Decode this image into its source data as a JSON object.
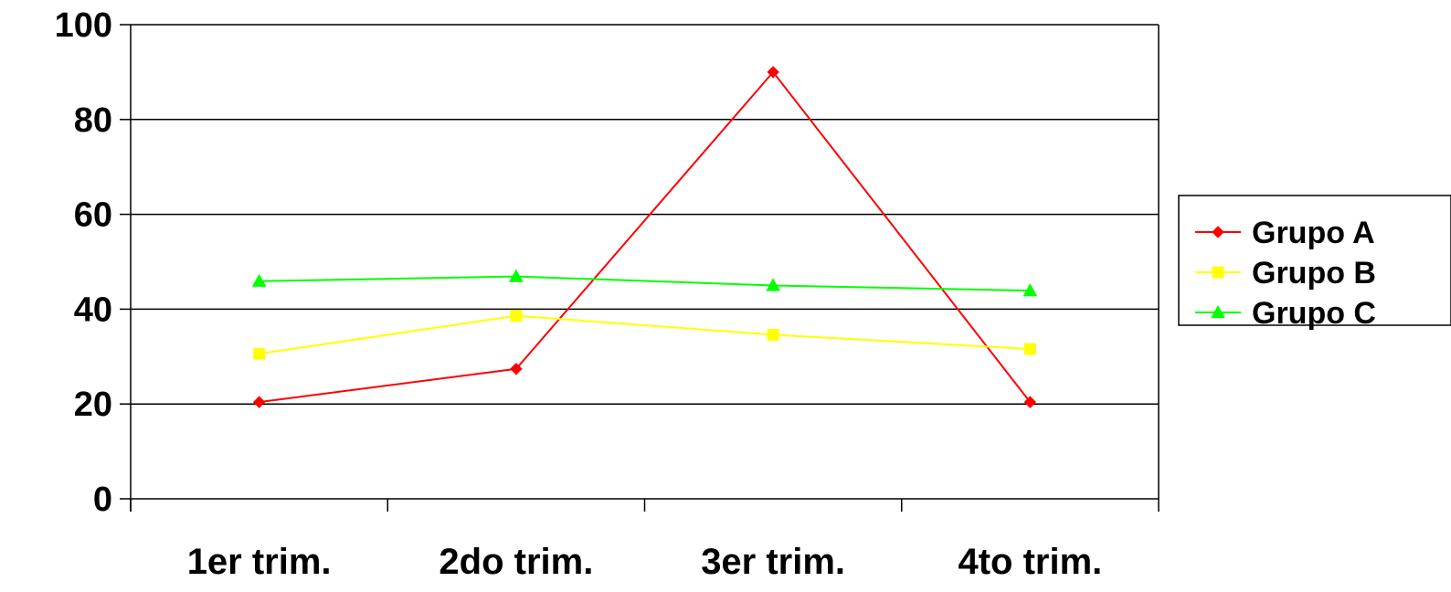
{
  "chart_data": {
    "type": "line",
    "categories": [
      "1er trim.",
      "2do trim.",
      "3er trim.",
      "4to trim."
    ],
    "series": [
      {
        "name": "Grupo A",
        "values": [
          20.4,
          27.4,
          90,
          20.4
        ],
        "color": "#ff0000",
        "marker": "diamond"
      },
      {
        "name": "Grupo B",
        "values": [
          30.6,
          38.6,
          34.6,
          31.6
        ],
        "color": "#ffff00",
        "marker": "square"
      },
      {
        "name": "Grupo C",
        "values": [
          45.9,
          46.9,
          45,
          43.9
        ],
        "color": "#00ff00",
        "marker": "triangle"
      }
    ],
    "yticks": [
      "0",
      "20",
      "40",
      "60",
      "80",
      "100"
    ],
    "ylim": [
      0,
      100
    ],
    "grid": true,
    "legend_position": "right",
    "title": "",
    "xlabel": "",
    "ylabel": ""
  }
}
